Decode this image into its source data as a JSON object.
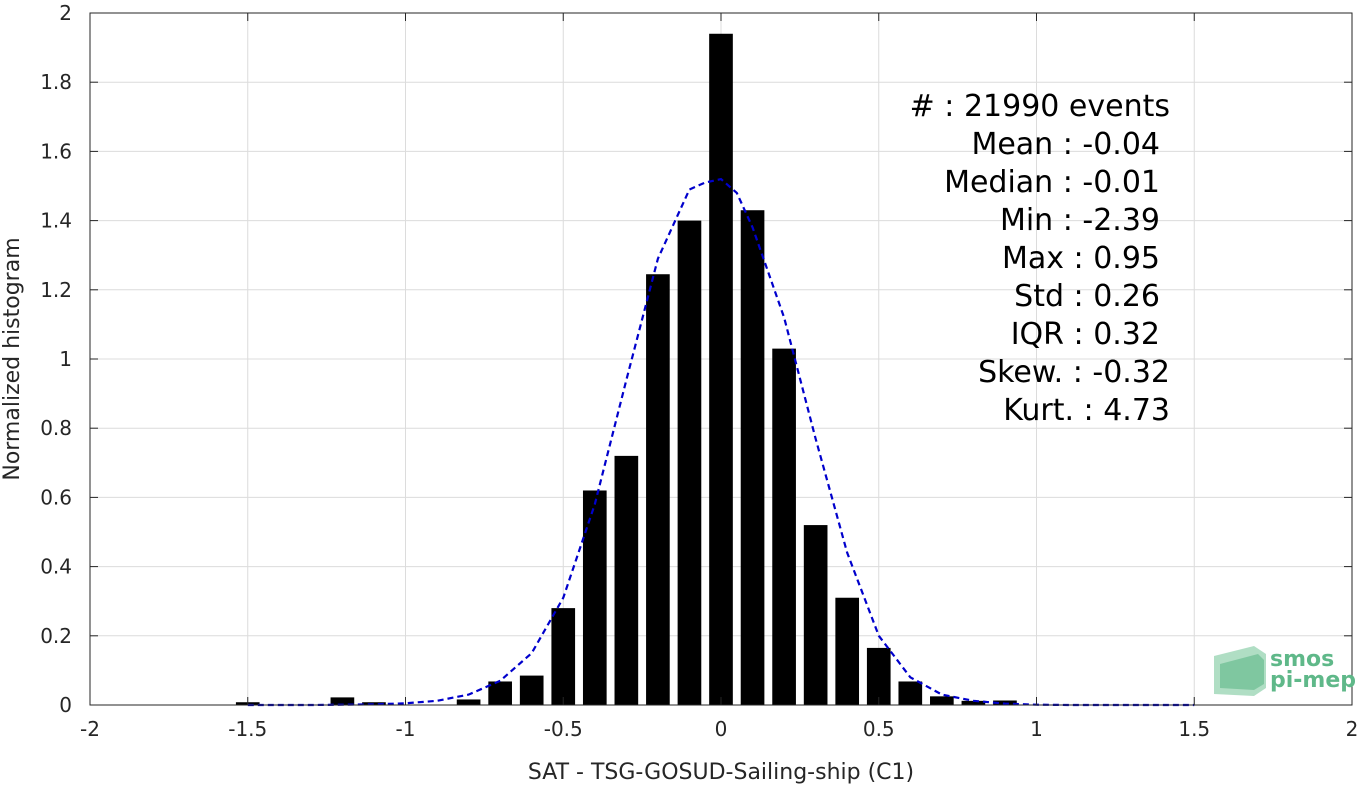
{
  "chart_data": {
    "type": "bar",
    "xlabel": "SAT - TSG-GOSUD-Sailing-ship (C1)",
    "ylabel": "Normalized histogram",
    "xlim": [
      -2,
      2
    ],
    "ylim": [
      0,
      2
    ],
    "xticks": [
      -2,
      -1.5,
      -1,
      -0.5,
      0,
      0.5,
      1,
      1.5,
      2
    ],
    "xtick_labels": [
      "-2",
      "-1.5",
      "-1",
      "-0.5",
      "0",
      "0.5",
      "1",
      "1.5",
      "2"
    ],
    "yticks": [
      0,
      0.2,
      0.4,
      0.6,
      0.8,
      1,
      1.2,
      1.4,
      1.6,
      1.8,
      2
    ],
    "ytick_labels": [
      "0",
      "0.2",
      "0.4",
      "0.6",
      "0.8",
      "1",
      "1.2",
      "1.4",
      "1.6",
      "1.8",
      "2"
    ],
    "grid": true,
    "bar_color": "#000000",
    "fit_color": "#0000cc",
    "bars": {
      "x": [
        -1.5,
        -1.2,
        -1.1,
        -0.8,
        -0.7,
        -0.6,
        -0.5,
        -0.4,
        -0.3,
        -0.2,
        -0.1,
        0.0,
        0.1,
        0.2,
        0.3,
        0.4,
        0.5,
        0.6,
        0.7,
        0.8,
        0.9
      ],
      "values": [
        0.008,
        0.022,
        0.008,
        0.016,
        0.068,
        0.085,
        0.28,
        0.62,
        0.72,
        1.245,
        1.4,
        1.94,
        1.43,
        1.03,
        0.52,
        0.31,
        0.165,
        0.068,
        0.025,
        0.012,
        0.013
      ]
    },
    "fit_curve": {
      "style": "dashed",
      "x": [
        -1.5,
        -1.4,
        -1.3,
        -1.2,
        -1.1,
        -1.0,
        -0.9,
        -0.8,
        -0.7,
        -0.6,
        -0.5,
        -0.4,
        -0.3,
        -0.2,
        -0.1,
        -0.05,
        0.0,
        0.05,
        0.1,
        0.2,
        0.3,
        0.4,
        0.5,
        0.6,
        0.7,
        0.8,
        0.9,
        1.0,
        1.1,
        1.2,
        1.3,
        1.4,
        1.5
      ],
      "values": [
        0.0,
        0.0,
        0.0,
        0.001,
        0.002,
        0.005,
        0.012,
        0.03,
        0.07,
        0.15,
        0.31,
        0.58,
        0.94,
        1.29,
        1.49,
        1.51,
        1.52,
        1.48,
        1.38,
        1.12,
        0.77,
        0.44,
        0.2,
        0.08,
        0.03,
        0.012,
        0.004,
        0.001,
        0.0,
        0.0,
        0.0,
        0.0,
        0.0
      ]
    },
    "stats": [
      "#  : 21990 events",
      "Mean : -0.04",
      "Median : -0.01",
      "Min : -2.39",
      "Max : 0.95",
      "Std : 0.26",
      "IQR : 0.32",
      "Skew. : -0.32",
      "Kurt. : 4.73"
    ]
  },
  "logo": {
    "line1": "smos",
    "line2": "pi-mep",
    "color": "#5fb889"
  }
}
